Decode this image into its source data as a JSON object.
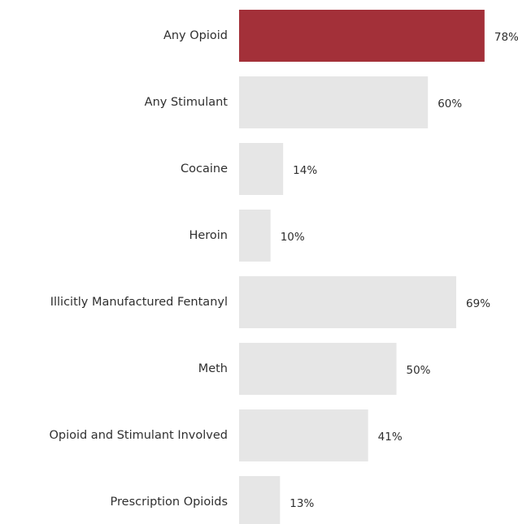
{
  "chart_data": {
    "type": "bar",
    "orientation": "horizontal",
    "categories": [
      "Any Opioid",
      "Any Stimulant",
      "Cocaine",
      "Heroin",
      "Illicitly Manufactured Fentanyl",
      "Meth",
      "Opioid and Stimulant Involved",
      "Prescription Opioids"
    ],
    "values": [
      78,
      60,
      14,
      10,
      69,
      50,
      41,
      13
    ],
    "value_labels": [
      "78%",
      "60%",
      "14%",
      "10%",
      "69%",
      "50%",
      "41%",
      "13%"
    ],
    "unit": "%",
    "xlim": [
      0,
      100
    ],
    "highlight_index": 0,
    "grid": false,
    "legend": "none"
  },
  "colors": {
    "highlight": "#a33039",
    "bar": "#e6e6e6",
    "text": "#2f2f2f",
    "background": "#ffffff"
  }
}
